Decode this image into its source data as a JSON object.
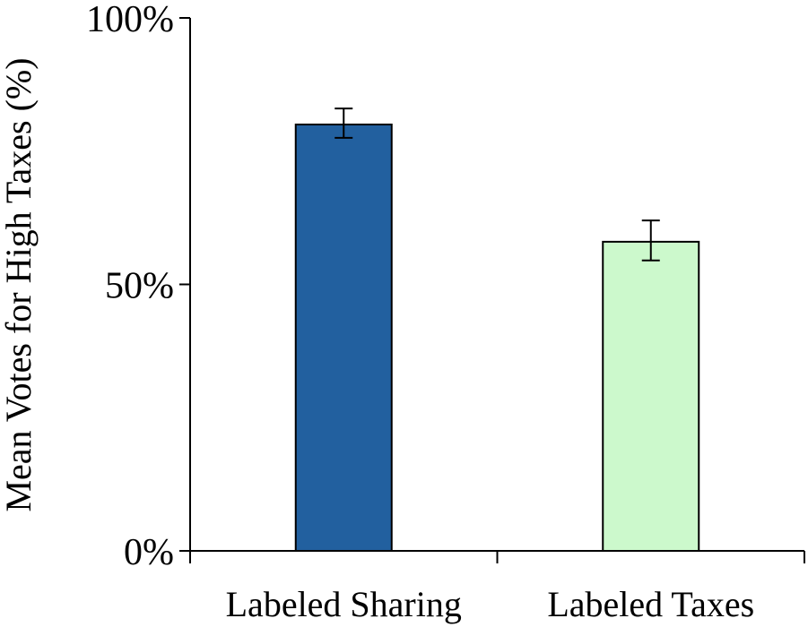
{
  "chart_data": {
    "type": "bar",
    "title": "",
    "xlabel": "",
    "ylabel": "Mean Votes for High Taxes (%)",
    "categories": [
      "Labeled Sharing",
      "Labeled Taxes"
    ],
    "values": [
      80,
      58
    ],
    "error_low": [
      77.5,
      54.5
    ],
    "error_high": [
      83,
      62
    ],
    "colors": [
      "#22609f",
      "#ccf9cc"
    ],
    "ylim": [
      0,
      100
    ],
    "yticks": [
      0,
      50,
      100
    ],
    "ytick_labels": [
      "0%",
      "50%",
      "100%"
    ],
    "grid": false,
    "legend": "none"
  }
}
